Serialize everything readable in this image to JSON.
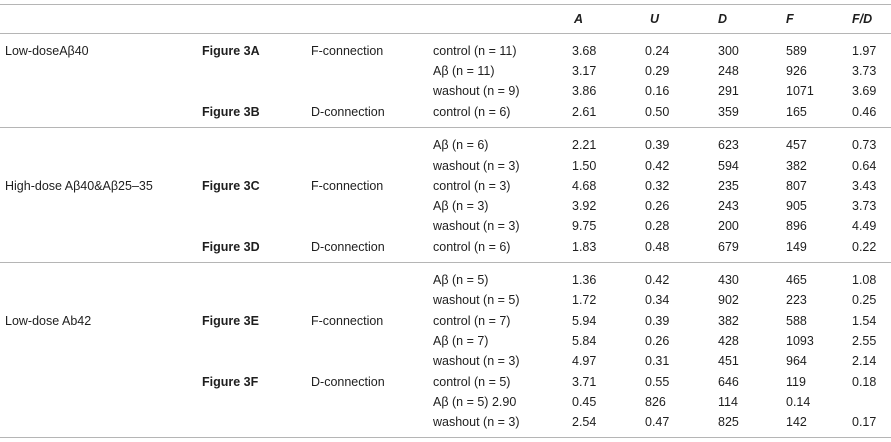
{
  "headers": {
    "A": "A",
    "U": "U",
    "D": "D",
    "F": "F",
    "FD": "F/D"
  },
  "groups": [
    {
      "label": "Low-doseAβ40"
    },
    {
      "label": "High-dose Aβ40&Aβ25–35"
    },
    {
      "label": "Low-dose Ab42"
    }
  ],
  "figures": [
    {
      "fig": "Figure 3A",
      "conn": "F-connection"
    },
    {
      "fig": "Figure 3B",
      "conn": "D-connection"
    },
    {
      "fig": "Figure 3C",
      "conn": "F-connection"
    },
    {
      "fig": "Figure 3D",
      "conn": "D-connection"
    },
    {
      "fig": "Figure 3E",
      "conn": "F-connection"
    },
    {
      "fig": "Figure 3F",
      "conn": "D-connection"
    }
  ],
  "rows": [
    {
      "cond": "control (n = 11)",
      "A": "3.68",
      "U": "0.24",
      "D": "300",
      "F": "589",
      "FD": "1.97"
    },
    {
      "cond": "Aβ (n = 11)",
      "A": "3.17",
      "U": "0.29",
      "D": "248",
      "F": "926",
      "FD": "3.73"
    },
    {
      "cond": "washout (n = 9)",
      "A": "3.86",
      "U": "0.16",
      "D": "291",
      "F": "1071",
      "FD": "3.69"
    },
    {
      "cond": "control (n = 6)",
      "A": "2.61",
      "U": "0.50",
      "D": "359",
      "F": "165",
      "FD": "0.46"
    },
    {
      "cond": "Aβ (n = 6)",
      "A": "2.21",
      "U": "0.39",
      "D": "623",
      "F": "457",
      "FD": "0.73"
    },
    {
      "cond": "washout (n = 3)",
      "A": "1.50",
      "U": "0.42",
      "D": "594",
      "F": "382",
      "FD": "0.64"
    },
    {
      "cond": "control (n = 3)",
      "A": "4.68",
      "U": "0.32",
      "D": "235",
      "F": "807",
      "FD": "3.43"
    },
    {
      "cond": "Aβ (n = 3)",
      "A": "3.92",
      "U": "0.26",
      "D": "243",
      "F": "905",
      "FD": "3.73"
    },
    {
      "cond": "washout (n = 3)",
      "A": "9.75",
      "U": "0.28",
      "D": "200",
      "F": "896",
      "FD": "4.49"
    },
    {
      "cond": "control (n = 6)",
      "A": "1.83",
      "U": "0.48",
      "D": "679",
      "F": "149",
      "FD": "0.22"
    },
    {
      "cond": "Aβ (n = 5)",
      "A": "1.36",
      "U": "0.42",
      "D": "430",
      "F": "465",
      "FD": "1.08"
    },
    {
      "cond": "washout (n = 5)",
      "A": "1.72",
      "U": "0.34",
      "D": "902",
      "F": "223",
      "FD": "0.25"
    },
    {
      "cond": "control (n = 7)",
      "A": "5.94",
      "U": "0.39",
      "D": "382",
      "F": "588",
      "FD": "1.54"
    },
    {
      "cond": "Aβ (n = 7)",
      "A": "5.84",
      "U": "0.26",
      "D": "428",
      "F": "1093",
      "FD": "2.55"
    },
    {
      "cond": "washout (n = 3)",
      "A": "4.97",
      "U": "0.31",
      "D": "451",
      "F": "964",
      "FD": "2.14"
    },
    {
      "cond": "control (n = 5)",
      "A": "3.71",
      "U": "0.55",
      "D": "646",
      "F": "119",
      "FD": "0.18"
    },
    {
      "cond": "Aβ (n = 5) 2.90",
      "A": "0.45",
      "U": "826",
      "D": "114",
      "F": "0.14",
      "FD": ""
    },
    {
      "cond": "washout (n = 3)",
      "A": "2.54",
      "U": "0.47",
      "D": "825",
      "F": "142",
      "FD": "0.17"
    }
  ]
}
